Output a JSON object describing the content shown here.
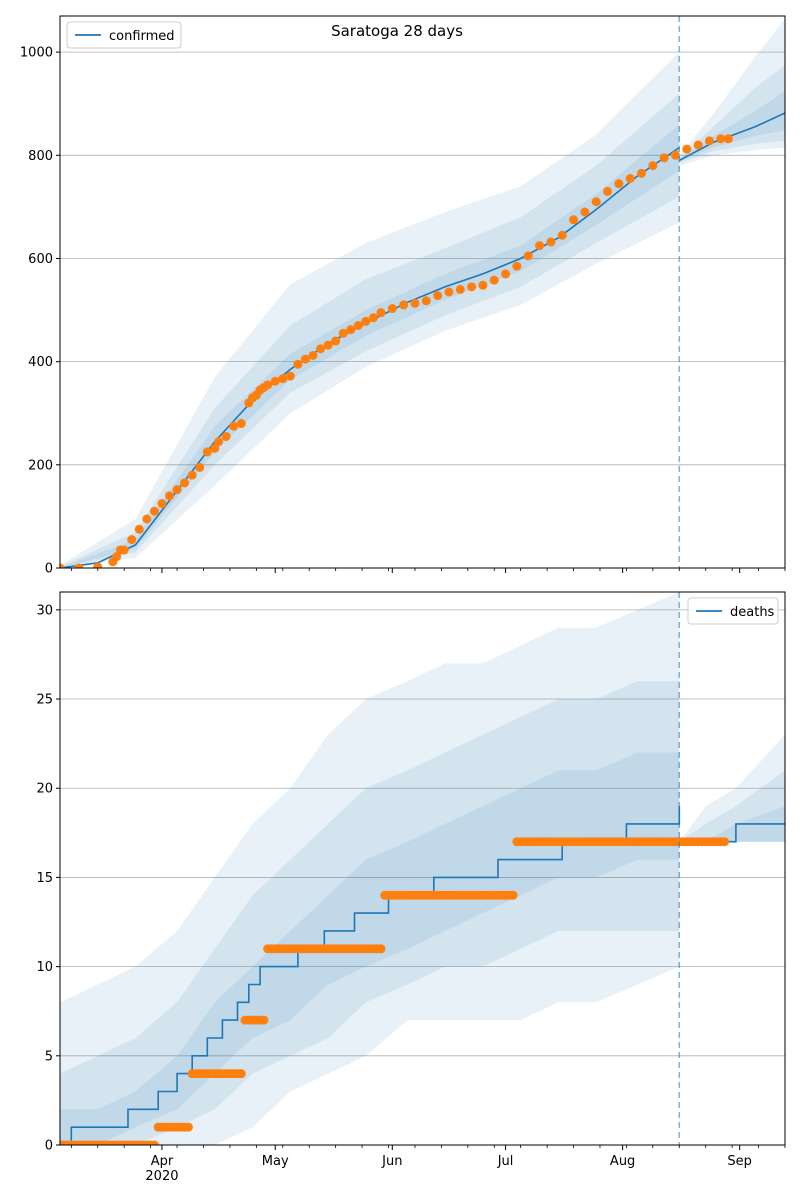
{
  "figure": {
    "title": "Saratoga 28 days"
  },
  "chart_data": [
    {
      "type": "line",
      "title": "Saratoga 28 days",
      "legend": {
        "label": "confirmed",
        "placement": "top-left"
      },
      "xlim": [
        "2020-03-05",
        "2020-09-13"
      ],
      "ylim": [
        0,
        1070
      ],
      "yticks": [
        0,
        200,
        400,
        600,
        800,
        1000
      ],
      "grid": "y",
      "forecast_start": "2020-08-16",
      "colors": {
        "model": "#1f77b4",
        "observed": "#ff7f0e",
        "band": "#1f77b4"
      },
      "model_fit": {
        "name": "confirmed",
        "x": [
          "2020-03-05",
          "2020-03-15",
          "2020-03-25",
          "2020-04-05",
          "2020-04-15",
          "2020-04-25",
          "2020-05-05",
          "2020-05-15",
          "2020-05-25",
          "2020-06-05",
          "2020-06-15",
          "2020-06-25",
          "2020-07-05",
          "2020-07-15",
          "2020-07-25",
          "2020-08-05",
          "2020-08-16"
        ],
        "y": [
          0,
          10,
          45,
          150,
          245,
          325,
          385,
          435,
          475,
          515,
          545,
          570,
          600,
          640,
          695,
          760,
          815
        ]
      },
      "forecast": {
        "x": [
          "2020-08-16",
          "2020-08-25",
          "2020-09-05",
          "2020-09-13"
        ],
        "y": [
          790,
          825,
          855,
          882
        ]
      },
      "bands": [
        {
          "x": [
            "2020-03-05",
            "2020-03-25",
            "2020-04-15",
            "2020-05-05",
            "2020-05-25",
            "2020-06-15",
            "2020-07-05",
            "2020-07-25",
            "2020-08-16"
          ],
          "lower": [
            0,
            20,
            160,
            300,
            390,
            460,
            510,
            590,
            670
          ],
          "upper": [
            5,
            95,
            370,
            550,
            630,
            690,
            740,
            840,
            1000
          ]
        },
        {
          "x": [
            "2020-03-05",
            "2020-03-25",
            "2020-04-15",
            "2020-05-05",
            "2020-05-25",
            "2020-06-15",
            "2020-07-05",
            "2020-07-25",
            "2020-08-16"
          ],
          "lower": [
            0,
            30,
            200,
            340,
            420,
            490,
            545,
            630,
            720
          ],
          "upper": [
            3,
            70,
            310,
            470,
            560,
            620,
            680,
            780,
            920
          ]
        },
        {
          "x": [
            "2020-03-05",
            "2020-03-25",
            "2020-04-15",
            "2020-05-05",
            "2020-05-25",
            "2020-06-15",
            "2020-07-05",
            "2020-07-25",
            "2020-08-16"
          ],
          "lower": [
            0,
            38,
            225,
            365,
            450,
            520,
            575,
            665,
            770
          ],
          "upper": [
            1,
            55,
            275,
            415,
            500,
            570,
            625,
            725,
            860
          ]
        },
        {
          "x": [
            "2020-08-16",
            "2020-08-25",
            "2020-09-05",
            "2020-09-13"
          ],
          "lower": [
            780,
            800,
            810,
            815
          ],
          "upper": [
            800,
            880,
            990,
            1065
          ]
        },
        {
          "x": [
            "2020-08-16",
            "2020-08-25",
            "2020-09-05",
            "2020-09-13"
          ],
          "lower": [
            785,
            808,
            822,
            828
          ],
          "upper": [
            795,
            855,
            930,
            975
          ]
        },
        {
          "x": [
            "2020-08-16",
            "2020-08-25",
            "2020-09-05",
            "2020-09-13"
          ],
          "lower": [
            788,
            815,
            838,
            848
          ],
          "upper": [
            792,
            838,
            885,
            925
          ]
        }
      ],
      "observed": {
        "x": [
          "2020-03-05",
          "2020-03-10",
          "2020-03-15",
          "2020-03-19",
          "2020-03-20",
          "2020-03-21",
          "2020-03-22",
          "2020-03-24",
          "2020-03-26",
          "2020-03-28",
          "2020-03-30",
          "2020-04-01",
          "2020-04-03",
          "2020-04-05",
          "2020-04-07",
          "2020-04-09",
          "2020-04-11",
          "2020-04-13",
          "2020-04-15",
          "2020-04-16",
          "2020-04-18",
          "2020-04-20",
          "2020-04-22",
          "2020-04-24",
          "2020-04-25",
          "2020-04-26",
          "2020-04-27",
          "2020-04-28",
          "2020-04-29",
          "2020-05-01",
          "2020-05-03",
          "2020-05-05",
          "2020-05-07",
          "2020-05-09",
          "2020-05-11",
          "2020-05-13",
          "2020-05-15",
          "2020-05-17",
          "2020-05-19",
          "2020-05-21",
          "2020-05-23",
          "2020-05-25",
          "2020-05-27",
          "2020-05-29",
          "2020-06-01",
          "2020-06-04",
          "2020-06-07",
          "2020-06-10",
          "2020-06-13",
          "2020-06-16",
          "2020-06-19",
          "2020-06-22",
          "2020-06-25",
          "2020-06-28",
          "2020-07-01",
          "2020-07-04",
          "2020-07-07",
          "2020-07-10",
          "2020-07-13",
          "2020-07-16",
          "2020-07-19",
          "2020-07-22",
          "2020-07-25",
          "2020-07-28",
          "2020-07-31",
          "2020-08-03",
          "2020-08-06",
          "2020-08-09",
          "2020-08-12",
          "2020-08-15",
          "2020-08-18",
          "2020-08-21",
          "2020-08-24",
          "2020-08-27",
          "2020-08-29"
        ],
        "y": [
          0,
          0,
          2,
          12,
          22,
          35,
          35,
          55,
          75,
          95,
          110,
          125,
          140,
          152,
          165,
          180,
          195,
          225,
          232,
          245,
          255,
          275,
          280,
          320,
          330,
          335,
          345,
          350,
          355,
          362,
          367,
          372,
          395,
          405,
          412,
          425,
          432,
          440,
          455,
          462,
          470,
          478,
          485,
          495,
          503,
          510,
          513,
          518,
          528,
          535,
          540,
          545,
          548,
          558,
          570,
          585,
          605,
          625,
          632,
          645,
          675,
          690,
          710,
          730,
          745,
          755,
          765,
          780,
          795,
          800,
          812,
          820,
          828,
          832,
          832
        ]
      }
    },
    {
      "type": "line",
      "legend": {
        "label": "deaths",
        "placement": "top-right"
      },
      "xlim": [
        "2020-03-05",
        "2020-09-13"
      ],
      "ylim": [
        0,
        31
      ],
      "yticks": [
        0,
        5,
        10,
        15,
        20,
        25,
        30
      ],
      "xticks": [
        "Apr\n2020",
        "May",
        "Jun",
        "Jul",
        "Aug",
        "Sep"
      ],
      "grid": "y",
      "forecast_start": "2020-08-16",
      "colors": {
        "model": "#1f77b4",
        "observed": "#ff7f0e",
        "band": "#1f77b4"
      },
      "model_fit": {
        "name": "deaths",
        "x": [
          "2020-03-05",
          "2020-03-08",
          "2020-03-23",
          "2020-03-31",
          "2020-04-05",
          "2020-04-09",
          "2020-04-13",
          "2020-04-17",
          "2020-04-21",
          "2020-04-24",
          "2020-04-27",
          "2020-05-01",
          "2020-05-07",
          "2020-05-14",
          "2020-05-22",
          "2020-05-31",
          "2020-06-12",
          "2020-06-29",
          "2020-07-16",
          "2020-08-02",
          "2020-08-16"
        ],
        "y": [
          0,
          1,
          2,
          3,
          4,
          5,
          6,
          7,
          8,
          9,
          10,
          10,
          11,
          12,
          13,
          14,
          15,
          16,
          17,
          18,
          19
        ]
      },
      "forecast": {
        "x": [
          "2020-08-16",
          "2020-08-23",
          "2020-08-31",
          "2020-09-13"
        ],
        "y": [
          17,
          17,
          18,
          18
        ]
      },
      "bands": [
        {
          "x": [
            "2020-03-05",
            "2020-03-15",
            "2020-03-25",
            "2020-04-05",
            "2020-04-15",
            "2020-04-25",
            "2020-05-05",
            "2020-05-15",
            "2020-05-25",
            "2020-06-05",
            "2020-06-15",
            "2020-06-25",
            "2020-07-05",
            "2020-07-15",
            "2020-07-25",
            "2020-08-05",
            "2020-08-16"
          ],
          "lower": [
            0,
            0,
            0,
            0,
            0,
            1,
            3,
            4,
            5,
            7,
            7,
            7,
            7,
            8,
            8,
            9,
            10
          ],
          "upper": [
            8,
            9,
            10,
            12,
            15,
            18,
            20,
            23,
            25,
            26,
            27,
            27,
            28,
            29,
            29,
            30,
            31
          ]
        },
        {
          "x": [
            "2020-03-05",
            "2020-03-15",
            "2020-03-25",
            "2020-04-05",
            "2020-04-15",
            "2020-04-25",
            "2020-05-05",
            "2020-05-15",
            "2020-05-25",
            "2020-06-05",
            "2020-06-15",
            "2020-06-25",
            "2020-07-05",
            "2020-07-15",
            "2020-07-25",
            "2020-08-05",
            "2020-08-16"
          ],
          "lower": [
            0,
            0,
            0,
            1,
            2,
            4,
            5,
            6,
            8,
            9,
            10,
            10,
            11,
            12,
            12,
            12,
            12
          ],
          "upper": [
            4,
            5,
            6,
            8,
            11,
            14,
            16,
            18,
            20,
            21,
            22,
            23,
            24,
            25,
            25,
            26,
            26
          ]
        },
        {
          "x": [
            "2020-03-05",
            "2020-03-15",
            "2020-03-25",
            "2020-04-05",
            "2020-04-15",
            "2020-04-25",
            "2020-05-05",
            "2020-05-15",
            "2020-05-25",
            "2020-06-05",
            "2020-06-15",
            "2020-06-25",
            "2020-07-05",
            "2020-07-15",
            "2020-07-25",
            "2020-08-05",
            "2020-08-16"
          ],
          "lower": [
            0,
            0,
            1,
            2,
            4,
            6,
            7,
            9,
            10,
            11,
            12,
            13,
            14,
            15,
            15,
            16,
            16
          ],
          "upper": [
            2,
            2,
            3,
            5,
            8,
            10,
            12,
            14,
            16,
            17,
            18,
            19,
            20,
            21,
            21,
            22,
            22
          ]
        },
        {
          "x": [
            "2020-08-16",
            "2020-08-23",
            "2020-08-31",
            "2020-09-13"
          ],
          "lower": [
            17,
            17,
            17,
            17
          ],
          "upper": [
            17,
            19,
            20,
            23
          ]
        },
        {
          "x": [
            "2020-08-16",
            "2020-08-23",
            "2020-08-31",
            "2020-09-13"
          ],
          "lower": [
            17,
            17,
            17,
            17
          ],
          "upper": [
            17,
            18,
            19,
            21
          ]
        },
        {
          "x": [
            "2020-08-16",
            "2020-08-23",
            "2020-08-31",
            "2020-09-13"
          ],
          "lower": [
            17,
            17,
            17,
            17
          ],
          "upper": [
            17,
            17,
            18,
            19
          ]
        }
      ],
      "observed_steps": [
        {
          "start": "2020-03-05",
          "end": "2020-03-30",
          "y": 0
        },
        {
          "start": "2020-03-31",
          "end": "2020-04-08",
          "y": 1
        },
        {
          "start": "2020-04-09",
          "end": "2020-04-22",
          "y": 4
        },
        {
          "start": "2020-04-23",
          "end": "2020-04-28",
          "y": 7
        },
        {
          "start": "2020-04-29",
          "end": "2020-05-29",
          "y": 11
        },
        {
          "start": "2020-05-30",
          "end": "2020-07-03",
          "y": 14
        },
        {
          "start": "2020-07-04",
          "end": "2020-08-28",
          "y": 17
        }
      ]
    }
  ]
}
